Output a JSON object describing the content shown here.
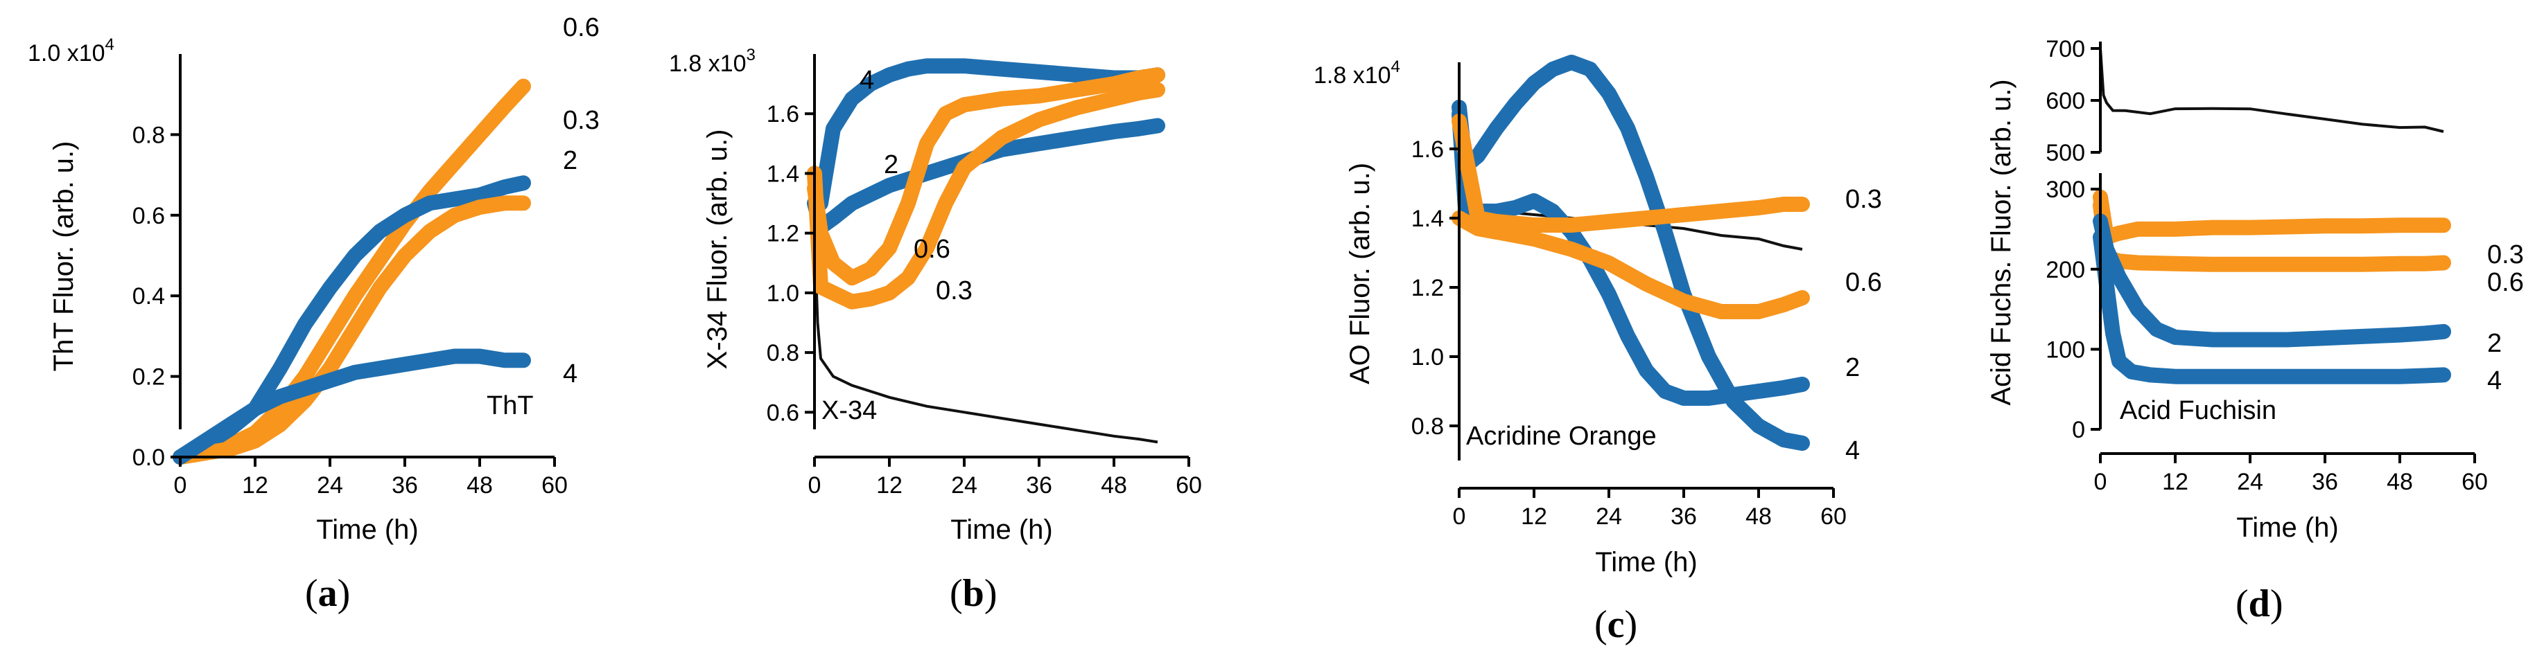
{
  "colors": {
    "blue": "#1f6fb0",
    "orange": "#f7951d",
    "black": "#111111"
  },
  "chart_data": [
    {
      "type": "line",
      "panel_label": "a",
      "ylabel": "ThT Fluor. (arb. u.)",
      "xlabel": "Time (h)",
      "xticks": [
        "0",
        "12",
        "24",
        "36",
        "48",
        "60"
      ],
      "yticks": [
        "0.0",
        "0.2",
        "0.4",
        "0.6",
        "0.8"
      ],
      "ymax_label": "1.0 x10",
      "ymax_exp": "4",
      "annotation": "ThT",
      "xlim": [
        0,
        60
      ],
      "ylim": [
        0,
        1.0
      ],
      "series": [
        {
          "name": "0.6",
          "color": "orange",
          "x": [
            0,
            4,
            8,
            12,
            16,
            20,
            24,
            28,
            32,
            36,
            40,
            44,
            48,
            52,
            55
          ],
          "y": [
            0,
            0.01,
            0.03,
            0.06,
            0.12,
            0.2,
            0.3,
            0.4,
            0.49,
            0.58,
            0.66,
            0.73,
            0.8,
            0.87,
            0.92
          ]
        },
        {
          "name": "0.3",
          "color": "blue",
          "x": [
            0,
            4,
            8,
            12,
            16,
            20,
            24,
            28,
            32,
            36,
            40,
            44,
            48,
            52,
            55
          ],
          "y": [
            0,
            0.03,
            0.07,
            0.12,
            0.22,
            0.33,
            0.42,
            0.5,
            0.56,
            0.6,
            0.63,
            0.64,
            0.65,
            0.67,
            0.68
          ]
        },
        {
          "name": "2",
          "color": "orange",
          "x": [
            0,
            4,
            8,
            12,
            16,
            20,
            24,
            28,
            32,
            36,
            40,
            44,
            48,
            52,
            55
          ],
          "y": [
            0,
            0.01,
            0.02,
            0.04,
            0.08,
            0.14,
            0.22,
            0.32,
            0.42,
            0.5,
            0.56,
            0.6,
            0.62,
            0.63,
            0.63
          ]
        },
        {
          "name": "4",
          "color": "blue",
          "x": [
            0,
            4,
            8,
            12,
            16,
            20,
            24,
            28,
            32,
            36,
            40,
            44,
            48,
            52,
            55
          ],
          "y": [
            0,
            0.04,
            0.08,
            0.12,
            0.15,
            0.17,
            0.19,
            0.21,
            0.22,
            0.23,
            0.24,
            0.25,
            0.25,
            0.24,
            0.24
          ]
        },
        {
          "name": "ThT",
          "color": "black",
          "x": [
            0,
            55
          ],
          "y": [
            0,
            0
          ]
        }
      ]
    },
    {
      "type": "line",
      "panel_label": "b",
      "ylabel": "X-34 Fluor. (arb. u.)",
      "xlabel": "Time (h)",
      "xticks": [
        "0",
        "12",
        "24",
        "36",
        "48",
        "60"
      ],
      "yticks": [
        "0.6",
        "0.8",
        "1.0",
        "1.2",
        "1.4",
        "1.6"
      ],
      "ymax_label": "1.8 x10",
      "ymax_exp": "3",
      "annotation": "X-34",
      "xlim": [
        0,
        60
      ],
      "ylim": [
        0.45,
        1.8
      ],
      "series": [
        {
          "name": "4",
          "color": "blue",
          "x": [
            0,
            1,
            3,
            6,
            9,
            12,
            15,
            18,
            24,
            30,
            36,
            42,
            48,
            52,
            55
          ],
          "y": [
            1.4,
            1.3,
            1.55,
            1.65,
            1.7,
            1.73,
            1.75,
            1.76,
            1.76,
            1.75,
            1.74,
            1.73,
            1.72,
            1.72,
            1.73
          ]
        },
        {
          "name": "2",
          "color": "blue",
          "x": [
            0,
            1,
            3,
            6,
            9,
            12,
            18,
            24,
            30,
            36,
            42,
            48,
            52,
            55
          ],
          "y": [
            1.3,
            1.22,
            1.25,
            1.3,
            1.33,
            1.36,
            1.4,
            1.44,
            1.48,
            1.5,
            1.52,
            1.54,
            1.55,
            1.56
          ]
        },
        {
          "name": "0.6",
          "color": "orange",
          "x": [
            0,
            1,
            3,
            6,
            9,
            12,
            15,
            18,
            21,
            24,
            30,
            36,
            42,
            48,
            52,
            55
          ],
          "y": [
            1.35,
            1.2,
            1.1,
            1.05,
            1.08,
            1.15,
            1.3,
            1.5,
            1.6,
            1.63,
            1.65,
            1.66,
            1.68,
            1.7,
            1.72,
            1.73
          ]
        },
        {
          "name": "0.3",
          "color": "orange",
          "x": [
            0,
            1,
            3,
            6,
            9,
            12,
            15,
            18,
            21,
            24,
            30,
            36,
            42,
            48,
            52,
            55
          ],
          "y": [
            1.4,
            1.02,
            1.0,
            0.97,
            0.98,
            1.0,
            1.05,
            1.15,
            1.3,
            1.42,
            1.52,
            1.58,
            1.62,
            1.65,
            1.67,
            1.68
          ]
        },
        {
          "name": "X-34",
          "color": "black",
          "x": [
            0,
            0.5,
            1,
            3,
            6,
            12,
            18,
            24,
            30,
            36,
            42,
            48,
            52,
            55
          ],
          "y": [
            1.2,
            0.9,
            0.78,
            0.72,
            0.69,
            0.65,
            0.62,
            0.6,
            0.58,
            0.56,
            0.54,
            0.52,
            0.51,
            0.5
          ]
        }
      ]
    },
    {
      "type": "line",
      "panel_label": "c",
      "ylabel": "AO Fluor. (arb. u.)",
      "xlabel": "Time (h)",
      "xticks": [
        "0",
        "12",
        "24",
        "36",
        "48",
        "60"
      ],
      "yticks": [
        "0.8",
        "1.0",
        "1.2",
        "1.4",
        "1.6"
      ],
      "ymax_label": "1.8 x10",
      "ymax_exp": "4",
      "annotation": "Acridine Orange",
      "xlim": [
        0,
        60
      ],
      "ylim": [
        0.7,
        1.85
      ],
      "series": [
        {
          "name": "4",
          "color": "blue",
          "x": [
            0,
            1,
            3,
            6,
            9,
            12,
            15,
            18,
            21,
            24,
            27,
            30,
            33,
            36,
            40,
            44,
            48,
            52,
            55
          ],
          "y": [
            1.72,
            1.55,
            1.58,
            1.66,
            1.73,
            1.79,
            1.83,
            1.85,
            1.83,
            1.76,
            1.66,
            1.52,
            1.36,
            1.18,
            1.0,
            0.87,
            0.8,
            0.76,
            0.75
          ]
        },
        {
          "name": "2",
          "color": "blue",
          "x": [
            0,
            1,
            3,
            6,
            9,
            12,
            15,
            18,
            21,
            24,
            27,
            30,
            33,
            36,
            40,
            44,
            48,
            52,
            55
          ],
          "y": [
            1.7,
            1.43,
            1.42,
            1.42,
            1.43,
            1.45,
            1.42,
            1.36,
            1.28,
            1.18,
            1.06,
            0.96,
            0.9,
            0.88,
            0.88,
            0.89,
            0.9,
            0.91,
            0.92
          ]
        },
        {
          "name": "0.3",
          "color": "orange",
          "x": [
            0,
            3,
            6,
            12,
            18,
            24,
            30,
            36,
            42,
            48,
            52,
            55
          ],
          "y": [
            1.68,
            1.4,
            1.39,
            1.38,
            1.38,
            1.39,
            1.4,
            1.41,
            1.42,
            1.43,
            1.44,
            1.44
          ]
        },
        {
          "name": "0.6",
          "color": "orange",
          "x": [
            0,
            3,
            6,
            12,
            18,
            24,
            30,
            36,
            42,
            48,
            52,
            55
          ],
          "y": [
            1.4,
            1.37,
            1.36,
            1.34,
            1.31,
            1.27,
            1.21,
            1.16,
            1.13,
            1.13,
            1.15,
            1.17
          ]
        },
        {
          "name": "black",
          "color": "black",
          "x": [
            0,
            3,
            6,
            12,
            18,
            24,
            30,
            36,
            42,
            48,
            52,
            55
          ],
          "y": [
            1.45,
            1.43,
            1.42,
            1.41,
            1.4,
            1.39,
            1.38,
            1.37,
            1.35,
            1.34,
            1.32,
            1.31
          ]
        }
      ]
    },
    {
      "type": "line",
      "panel_label": "d",
      "ylabel": "Acid Fuchs. Fluor. (arb. u.)",
      "xlabel": "Time (h)",
      "xticks": [
        "0",
        "12",
        "24",
        "36",
        "48",
        "60"
      ],
      "yticks_upper": [
        "500",
        "600",
        "700"
      ],
      "yticks_lower": [
        "0",
        "100",
        "200",
        "300"
      ],
      "annotation": "Acid Fuchisin",
      "xlim": [
        0,
        60
      ],
      "ylim_upper": [
        500,
        700
      ],
      "ylim_lower": [
        0,
        320
      ],
      "series_upper": [
        {
          "name": "black",
          "color": "black",
          "x": [
            0,
            0.5,
            1,
            2,
            4,
            8,
            12,
            18,
            24,
            30,
            36,
            42,
            48,
            52,
            55
          ],
          "y": [
            700,
            610,
            590,
            580,
            585,
            580,
            585,
            580,
            578,
            572,
            568,
            560,
            550,
            545,
            540
          ]
        }
      ],
      "series": [
        {
          "name": "0.3",
          "color": "orange",
          "x": [
            0,
            1,
            3,
            6,
            12,
            18,
            24,
            30,
            36,
            42,
            48,
            52,
            55
          ],
          "y": [
            290,
            240,
            245,
            250,
            250,
            252,
            252,
            253,
            254,
            254,
            255,
            255,
            255
          ]
        },
        {
          "name": "0.6",
          "color": "orange",
          "x": [
            0,
            1,
            3,
            6,
            12,
            18,
            24,
            30,
            36,
            42,
            48,
            52,
            55
          ],
          "y": [
            280,
            215,
            210,
            208,
            207,
            206,
            206,
            206,
            206,
            206,
            207,
            207,
            208
          ]
        },
        {
          "name": "2",
          "color": "blue",
          "x": [
            0,
            1,
            3,
            6,
            9,
            12,
            18,
            24,
            30,
            36,
            42,
            48,
            52,
            55
          ],
          "y": [
            260,
            225,
            190,
            150,
            125,
            115,
            112,
            112,
            112,
            114,
            116,
            118,
            120,
            122
          ]
        },
        {
          "name": "4",
          "color": "blue",
          "x": [
            0,
            1,
            2,
            3,
            5,
            8,
            12,
            18,
            24,
            30,
            36,
            42,
            48,
            52,
            55
          ],
          "y": [
            240,
            180,
            120,
            85,
            72,
            68,
            66,
            66,
            66,
            66,
            66,
            66,
            66,
            67,
            68
          ]
        }
      ]
    }
  ]
}
